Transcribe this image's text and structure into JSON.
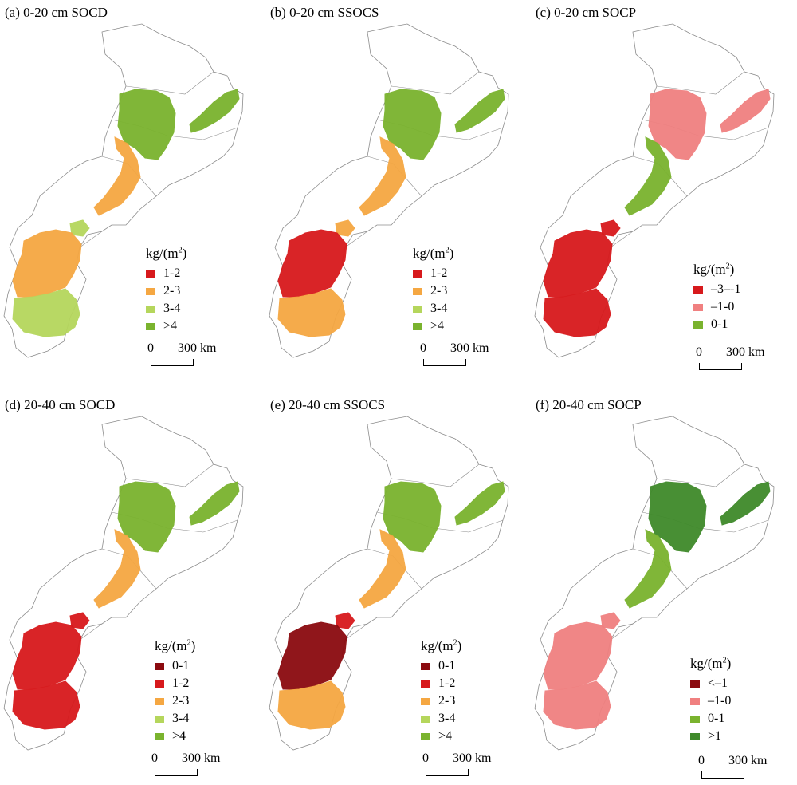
{
  "colors": {
    "dark_red": "#8b0a0f",
    "red": "#d7191c",
    "light_red": "#f08080",
    "orange": "#f5a742",
    "light_green": "#b5d65c",
    "green": "#7ab32e",
    "dark_green": "#3f8a2a",
    "boundary": "#8c8c8c"
  },
  "scale": {
    "zero": "0",
    "distance": "300 km"
  },
  "panels": [
    {
      "id": "a",
      "title": "(a) 0-20 cm SOCD",
      "unit_prefix": "kg/(m",
      "unit_exp": "2",
      "unit_suffix": ")",
      "legend": [
        {
          "label": "1-2",
          "color": "#d7191c"
        },
        {
          "label": "2-3",
          "color": "#f5a742"
        },
        {
          "label": "3-4",
          "color": "#b5d65c"
        },
        {
          "label": ">4",
          "color": "#7ab32e"
        }
      ],
      "regions": {
        "north": "#7ab32e",
        "east": "#7ab32e",
        "mid": "#f5a742",
        "sw_upper": "#f5a742",
        "sw_lower": "#b5d65c",
        "small": "#b5d65c"
      }
    },
    {
      "id": "b",
      "title": "(b) 0-20 cm SSOCS",
      "unit_prefix": "kg/(m",
      "unit_exp": "2",
      "unit_suffix": ")",
      "legend": [
        {
          "label": "1-2",
          "color": "#d7191c"
        },
        {
          "label": "2-3",
          "color": "#f5a742"
        },
        {
          "label": "3-4",
          "color": "#b5d65c"
        },
        {
          "label": ">4",
          "color": "#7ab32e"
        }
      ],
      "regions": {
        "north": "#7ab32e",
        "east": "#7ab32e",
        "mid": "#f5a742",
        "sw_upper": "#d7191c",
        "sw_lower": "#f5a742",
        "small": "#f5a742"
      }
    },
    {
      "id": "c",
      "title": "(c) 0-20 cm SOCP",
      "unit_prefix": "kg/(m",
      "unit_exp": "2",
      "unit_suffix": ")",
      "legend": [
        {
          "label": "–3–-1",
          "color": "#d7191c"
        },
        {
          "label": "–1-0",
          "color": "#f08080"
        },
        {
          "label": "0-1",
          "color": "#7ab32e"
        }
      ],
      "regions": {
        "north": "#f08080",
        "east": "#f08080",
        "mid": "#7ab32e",
        "sw_upper": "#d7191c",
        "sw_lower": "#d7191c",
        "small": "#d7191c"
      }
    },
    {
      "id": "d",
      "title": "(d) 20-40 cm SOCD",
      "unit_prefix": "kg/(m",
      "unit_exp": "2",
      "unit_suffix": ")",
      "legend": [
        {
          "label": "0-1",
          "color": "#8b0a0f"
        },
        {
          "label": "1-2",
          "color": "#d7191c"
        },
        {
          "label": "2-3",
          "color": "#f5a742"
        },
        {
          "label": "3-4",
          "color": "#b5d65c"
        },
        {
          "label": ">4",
          "color": "#7ab32e"
        }
      ],
      "regions": {
        "north": "#7ab32e",
        "east": "#7ab32e",
        "mid": "#f5a742",
        "sw_upper": "#d7191c",
        "sw_lower": "#d7191c",
        "small": "#d7191c"
      }
    },
    {
      "id": "e",
      "title": "(e) 20-40 cm SSOCS",
      "unit_prefix": "kg/(m",
      "unit_exp": "2",
      "unit_suffix": ")",
      "legend": [
        {
          "label": "0-1",
          "color": "#8b0a0f"
        },
        {
          "label": "1-2",
          "color": "#d7191c"
        },
        {
          "label": "2-3",
          "color": "#f5a742"
        },
        {
          "label": "3-4",
          "color": "#b5d65c"
        },
        {
          "label": ">4",
          "color": "#7ab32e"
        }
      ],
      "regions": {
        "north": "#7ab32e",
        "east": "#7ab32e",
        "mid": "#f5a742",
        "sw_upper": "#8b0a0f",
        "sw_lower": "#f5a742",
        "small": "#d7191c"
      }
    },
    {
      "id": "f",
      "title": "(f) 20-40 cm SOCP",
      "unit_prefix": "kg/(m",
      "unit_exp": "2",
      "unit_suffix": ")",
      "legend": [
        {
          "label": "<–1",
          "color": "#8b0a0f"
        },
        {
          "label": "–1-0",
          "color": "#f08080"
        },
        {
          "label": "0-1",
          "color": "#7ab32e"
        },
        {
          "label": ">1",
          "color": "#3f8a2a"
        }
      ],
      "regions": {
        "north": "#3f8a2a",
        "east": "#3f8a2a",
        "mid": "#7ab32e",
        "sw_upper": "#f08080",
        "sw_lower": "#f08080",
        "small": "#f08080"
      }
    }
  ]
}
